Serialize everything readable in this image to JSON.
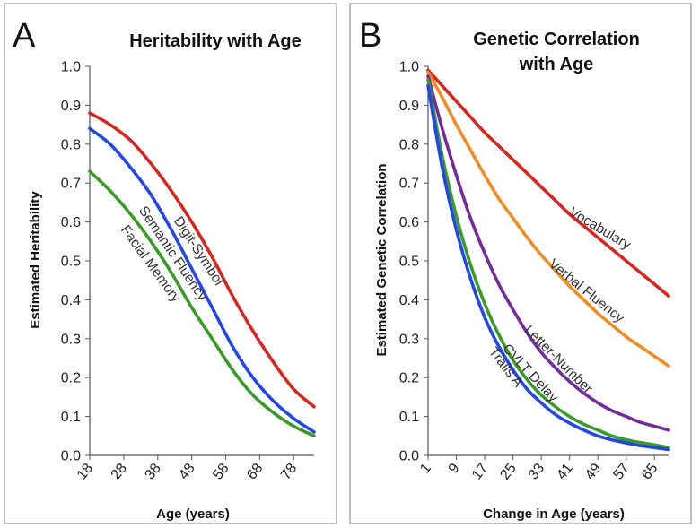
{
  "chart_data": [
    {
      "type": "line",
      "panel_label": "A",
      "title": "Heritability with Age",
      "xlabel": "Age (years)",
      "ylabel": "Estimated Heritability",
      "xlim": [
        18,
        84
      ],
      "ylim": [
        0,
        1.0
      ],
      "x_ticks": [
        18,
        28,
        38,
        48,
        58,
        68,
        78
      ],
      "y_ticks": [
        "0.0",
        "0.1",
        "0.2",
        "0.3",
        "0.4",
        "0.5",
        "0.6",
        "0.7",
        "0.8",
        "0.9",
        "1.0"
      ],
      "grid": false,
      "x": [
        18,
        24,
        30,
        36,
        42,
        48,
        54,
        60,
        66,
        72,
        78,
        84
      ],
      "series": [
        {
          "name": "Digit-Symbol",
          "color": "#d7261f",
          "values": [
            0.88,
            0.85,
            0.81,
            0.75,
            0.68,
            0.6,
            0.51,
            0.41,
            0.32,
            0.24,
            0.17,
            0.125
          ]
        },
        {
          "name": "Semantic Fluency",
          "color": "#2346e8",
          "values": [
            0.84,
            0.8,
            0.74,
            0.67,
            0.58,
            0.48,
            0.38,
            0.28,
            0.2,
            0.14,
            0.095,
            0.06
          ]
        },
        {
          "name": "Facial Memory",
          "color": "#3a9a2a",
          "values": [
            0.73,
            0.68,
            0.62,
            0.55,
            0.47,
            0.38,
            0.3,
            0.22,
            0.155,
            0.11,
            0.075,
            0.05
          ]
        }
      ]
    },
    {
      "type": "line",
      "panel_label": "B",
      "title": "Genetic Correlation\nwith Age",
      "title_lines": [
        "Genetic Correlation",
        "with Age"
      ],
      "xlabel": "Change in Age (years)",
      "ylabel": "Estimated Genetic Correlation",
      "xlim": [
        1,
        69
      ],
      "ylim": [
        0,
        1.0
      ],
      "x_ticks": [
        1,
        9,
        17,
        25,
        33,
        41,
        49,
        57,
        65
      ],
      "y_ticks": [
        "0.0",
        "0.1",
        "0.2",
        "0.3",
        "0.4",
        "0.5",
        "0.6",
        "0.7",
        "0.8",
        "0.9",
        "1.0"
      ],
      "grid": false,
      "x": [
        1,
        5,
        9,
        13,
        17,
        21,
        25,
        29,
        33,
        37,
        41,
        45,
        49,
        53,
        57,
        61,
        65,
        69
      ],
      "series": [
        {
          "name": "Vocabulary",
          "color": "#d7261f",
          "values": [
            0.99,
            0.95,
            0.91,
            0.87,
            0.83,
            0.795,
            0.76,
            0.725,
            0.69,
            0.655,
            0.62,
            0.59,
            0.56,
            0.53,
            0.5,
            0.47,
            0.44,
            0.41
          ]
        },
        {
          "name": "Verbal Fluency",
          "color": "#f08c24",
          "values": [
            0.985,
            0.92,
            0.85,
            0.785,
            0.72,
            0.66,
            0.61,
            0.56,
            0.515,
            0.475,
            0.435,
            0.4,
            0.365,
            0.335,
            0.305,
            0.28,
            0.255,
            0.23
          ]
        },
        {
          "name": "Letter-Number",
          "color": "#742c9c",
          "values": [
            0.975,
            0.84,
            0.72,
            0.61,
            0.52,
            0.44,
            0.375,
            0.315,
            0.265,
            0.225,
            0.19,
            0.16,
            0.135,
            0.115,
            0.1,
            0.085,
            0.075,
            0.065
          ]
        },
        {
          "name": "CVLT Delay",
          "color": "#3a9a2a",
          "values": [
            0.965,
            0.77,
            0.615,
            0.49,
            0.39,
            0.31,
            0.245,
            0.195,
            0.155,
            0.125,
            0.1,
            0.08,
            0.065,
            0.05,
            0.04,
            0.033,
            0.027,
            0.02
          ]
        },
        {
          "name": "Trails A",
          "color": "#2346e8",
          "values": [
            0.95,
            0.74,
            0.58,
            0.455,
            0.355,
            0.28,
            0.22,
            0.17,
            0.135,
            0.105,
            0.083,
            0.065,
            0.05,
            0.04,
            0.032,
            0.025,
            0.02,
            0.015
          ]
        }
      ]
    }
  ]
}
